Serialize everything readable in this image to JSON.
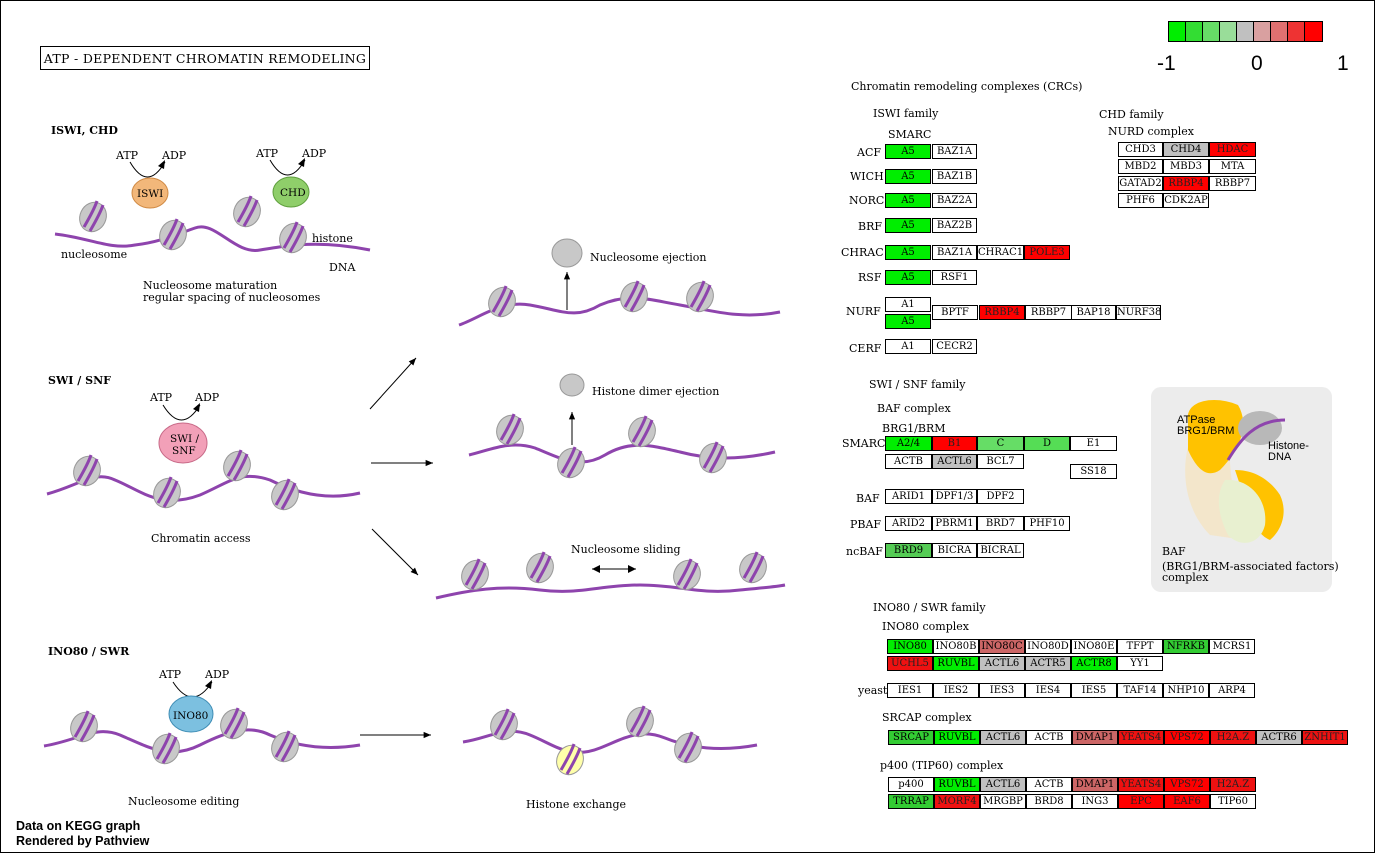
{
  "title": "ATP - DEPENDENT  CHROMATIN  REMODELING",
  "colors": {
    "green": "#00ee00",
    "green_mid": "#55dd55",
    "gray": "#c0c0c0",
    "red_light": "#cc6666",
    "red": "#ff0000",
    "purple": "#8e44ad"
  },
  "legend": {
    "swatches": [
      "#00ee00",
      "#33dd33",
      "#66dd66",
      "#99dd99",
      "#c0c0c0",
      "#d9a0a0",
      "#e07070",
      "#ee3333",
      "#ff0000"
    ],
    "labels": [
      "-1",
      "0",
      "1"
    ]
  },
  "left": {
    "iswi_chd": {
      "heading": "ISWI, CHD",
      "iswi": "ISWI",
      "chd": "CHD",
      "atp1": "ATP",
      "adp1": "ADP",
      "atp2": "ATP",
      "adp2": "ADP",
      "nucleosome": "nucleosome",
      "histone": "histone",
      "dna": "DNA",
      "caption1": "Nucleosome maturation",
      "caption2": "regular spacing of nucleosomes"
    },
    "swi_snf": {
      "heading": "SWI / SNF",
      "enzyme1": "SWI /",
      "enzyme2": "SNF",
      "atp": "ATP",
      "adp": "ADP",
      "caption": "Chromatin access"
    },
    "ino80": {
      "heading": "INO80 / SWR",
      "enzyme": "INO80",
      "atp": "ATP",
      "adp": "ADP",
      "caption": "Nucleosome editing"
    },
    "outcomes": {
      "ejection": "Nucleosome ejection",
      "dimer": "Histone dimer ejection",
      "sliding": "Nucleosome sliding",
      "exchange": "Histone exchange"
    }
  },
  "right": {
    "crc_title": "Chromatin remodeling complexes (CRCs)",
    "iswi_family": "ISWI family",
    "smarc": "SMARC",
    "chd_family": "CHD family",
    "nurd": "NURD complex",
    "swi_family": "SWI / SNF family",
    "baf_complex": "BAF complex",
    "brg": "BRG1/BRM",
    "ino_family": "INO80 / SWR family",
    "ino_complex": "INO80 complex",
    "srcap_complex": "SRCAP complex",
    "p400_complex": "p400 (TIP60) complex",
    "row_labels": {
      "acf": "ACF",
      "wich": "WICH",
      "norc": "NORC",
      "brf": "BRF",
      "chrac": "CHRAC",
      "rsf": "RSF",
      "nurf": "NURF",
      "cerf": "CERF",
      "smarc2": "SMARC",
      "baf": "BAF",
      "pbaf": "PBAF",
      "ncbaf": "ncBAF",
      "yeast": "yeast"
    },
    "baf_panel": {
      "atpase1": "ATPase",
      "atpase2": "BRG1/BRM",
      "histone1": "Histone-",
      "histone2": "DNA",
      "baf1": "BAF",
      "baf2": "(BRG1/BRM-associated factors)",
      "baf3": "complex"
    }
  },
  "genes": [
    {
      "label": "A5",
      "color": "#00ee00"
    },
    {
      "label": "BAZ1A",
      "color": "#ffffff"
    },
    {
      "label": "A5",
      "color": "#00ee00"
    },
    {
      "label": "BAZ1B",
      "color": "#ffffff"
    },
    {
      "label": "A5",
      "color": "#00ee00"
    },
    {
      "label": "BAZ2A",
      "color": "#ffffff"
    },
    {
      "label": "A5",
      "color": "#00ee00"
    },
    {
      "label": "BAZ2B",
      "color": "#ffffff"
    },
    {
      "label": "A5",
      "color": "#00ee00"
    },
    {
      "label": "BAZ1A",
      "color": "#ffffff"
    },
    {
      "label": "CHRAC1",
      "color": "#ffffff"
    },
    {
      "label": "POLE3",
      "color": "#ff0000"
    },
    {
      "label": "A5",
      "color": "#00ee00"
    },
    {
      "label": "RSF1",
      "color": "#ffffff"
    },
    {
      "label": "A1",
      "color": "#ffffff"
    },
    {
      "label": "A5",
      "color": "#00ee00"
    },
    {
      "label": "BPTF",
      "color": "#ffffff"
    },
    {
      "label": "RBBP4",
      "color": "#ff0000"
    },
    {
      "label": "RBBP7",
      "color": "#ffffff"
    },
    {
      "label": "BAP18",
      "color": "#ffffff"
    },
    {
      "label": "NURF38",
      "color": "#ffffff"
    },
    {
      "label": "A1",
      "color": "#ffffff"
    },
    {
      "label": "CECR2",
      "color": "#ffffff"
    },
    {
      "label": "CHD3",
      "color": "#ffffff"
    },
    {
      "label": "CHD4",
      "color": "#c0c0c0"
    },
    {
      "label": "HDAC",
      "color": "#ff0000"
    },
    {
      "label": "MBD2",
      "color": "#ffffff"
    },
    {
      "label": "MBD3",
      "color": "#ffffff"
    },
    {
      "label": "MTA",
      "color": "#ffffff"
    },
    {
      "label": "GATAD2",
      "color": "#ffffff"
    },
    {
      "label": "RBBP4",
      "color": "#ff0000"
    },
    {
      "label": "RBBP7",
      "color": "#ffffff"
    },
    {
      "label": "PHF6",
      "color": "#ffffff"
    },
    {
      "label": "CDK2AP",
      "color": "#ffffff"
    },
    {
      "label": "A2/4",
      "color": "#00ee00"
    },
    {
      "label": "B1",
      "color": "#ff0000"
    },
    {
      "label": "C",
      "color": "#66dd66"
    },
    {
      "label": "D",
      "color": "#55dd55"
    },
    {
      "label": "E1",
      "color": "#ffffff"
    },
    {
      "label": "ACTB",
      "color": "#ffffff"
    },
    {
      "label": "ACTL6",
      "color": "#c0c0c0"
    },
    {
      "label": "BCL7",
      "color": "#ffffff"
    },
    {
      "label": "SS18",
      "color": "#ffffff"
    },
    {
      "label": "ARID1",
      "color": "#ffffff"
    },
    {
      "label": "DPF1/3",
      "color": "#ffffff"
    },
    {
      "label": "DPF2",
      "color": "#ffffff"
    },
    {
      "label": "ARID2",
      "color": "#ffffff"
    },
    {
      "label": "PBRM1",
      "color": "#ffffff"
    },
    {
      "label": "BRD7",
      "color": "#ffffff"
    },
    {
      "label": "PHF10",
      "color": "#ffffff"
    },
    {
      "label": "BRD9",
      "color": "#55cc55"
    },
    {
      "label": "BICRA",
      "color": "#ffffff"
    },
    {
      "label": "BICRAL",
      "color": "#ffffff"
    },
    {
      "label": "INO80",
      "color": "#00ee00"
    },
    {
      "label": "INO80B",
      "color": "#ffffff"
    },
    {
      "label": "INO80C",
      "color": "#cc6666"
    },
    {
      "label": "INO80D",
      "color": "#ffffff"
    },
    {
      "label": "INO80E",
      "color": "#ffffff"
    },
    {
      "label": "TFPT",
      "color": "#ffffff"
    },
    {
      "label": "NFRKB",
      "color": "#33cc33"
    },
    {
      "label": "MCRS1",
      "color": "#ffffff"
    },
    {
      "label": "UCHL5",
      "color": "#ee1111"
    },
    {
      "label": "RUVBL",
      "color": "#00ee00"
    },
    {
      "label": "ACTL6",
      "color": "#c0c0c0"
    },
    {
      "label": "ACTR5",
      "color": "#c0c0c0"
    },
    {
      "label": "ACTR8",
      "color": "#00ee00"
    },
    {
      "label": "YY1",
      "color": "#ffffff"
    },
    {
      "label": "IES1",
      "color": "#ffffff"
    },
    {
      "label": "IES2",
      "color": "#ffffff"
    },
    {
      "label": "IES3",
      "color": "#ffffff"
    },
    {
      "label": "IES4",
      "color": "#ffffff"
    },
    {
      "label": "IES5",
      "color": "#ffffff"
    },
    {
      "label": "TAF14",
      "color": "#ffffff"
    },
    {
      "label": "NHP10",
      "color": "#ffffff"
    },
    {
      "label": "ARP4",
      "color": "#ffffff"
    },
    {
      "label": "SRCAP",
      "color": "#33cc33"
    },
    {
      "label": "RUVBL",
      "color": "#00ee00"
    },
    {
      "label": "ACTL6",
      "color": "#c0c0c0"
    },
    {
      "label": "ACTB",
      "color": "#ffffff"
    },
    {
      "label": "DMAP1",
      "color": "#cc6666"
    },
    {
      "label": "YEATS4",
      "color": "#ee1111"
    },
    {
      "label": "VPS72",
      "color": "#ff0000"
    },
    {
      "label": "H2A.Z",
      "color": "#ee1111"
    },
    {
      "label": "ACTR6",
      "color": "#c0c0c0"
    },
    {
      "label": "ZNHIT1",
      "color": "#ee1111"
    },
    {
      "label": "p400",
      "color": "#ffffff"
    },
    {
      "label": "RUVBL",
      "color": "#00ee00"
    },
    {
      "label": "ACTL6",
      "color": "#c0c0c0"
    },
    {
      "label": "ACTB",
      "color": "#ffffff"
    },
    {
      "label": "DMAP1",
      "color": "#cc6666"
    },
    {
      "label": "YEATS4",
      "color": "#ee1111"
    },
    {
      "label": "VPS72",
      "color": "#ff0000"
    },
    {
      "label": "H2A.Z",
      "color": "#ee1111"
    },
    {
      "label": "TRRAP",
      "color": "#33cc33"
    },
    {
      "label": "MORF4",
      "color": "#ee1111"
    },
    {
      "label": "MRGBP",
      "color": "#ffffff"
    },
    {
      "label": "BRD8",
      "color": "#ffffff"
    },
    {
      "label": "ING3",
      "color": "#ffffff"
    },
    {
      "label": "EPC",
      "color": "#ff0000"
    },
    {
      "label": "EAF6",
      "color": "#ff0000"
    },
    {
      "label": "TIP60",
      "color": "#ffffff"
    }
  ],
  "footer": {
    "line1": "Data on KEGG graph",
    "line2": "Rendered by Pathview"
  }
}
